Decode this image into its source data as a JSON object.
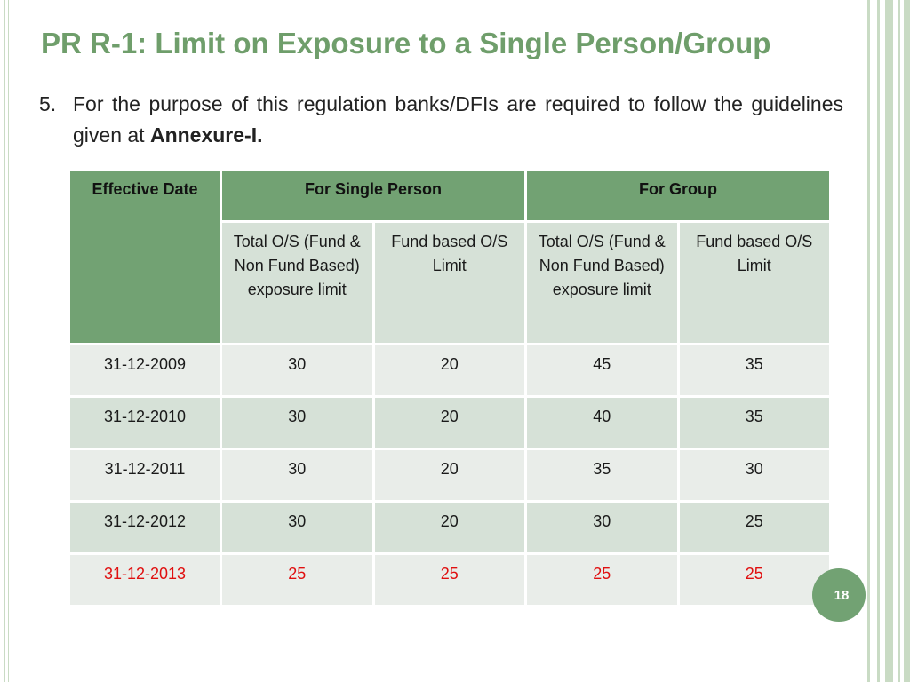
{
  "slide": {
    "title": "PR R-1: Limit on Exposure to a Single Person/Group",
    "point_number": "5.",
    "point_text_lead": "For the purpose of this regulation banks/DFIs are required to follow the guidelines given at ",
    "point_text_bold": "Annexure-I.",
    "page_number": "18"
  },
  "table": {
    "headers": {
      "effective_date": "Effective Date",
      "single_person": "For Single Person",
      "group": "For Group"
    },
    "subheaders": [
      "Total O/S (Fund & Non Fund Based) exposure limit",
      "Fund based O/S Limit",
      "Total O/S (Fund & Non Fund Based) exposure limit",
      "Fund based O/S Limit"
    ],
    "rows": [
      {
        "date": "31-12-2009",
        "values": [
          "30",
          "20",
          "45",
          "35"
        ]
      },
      {
        "date": "31-12-2010",
        "values": [
          "30",
          "20",
          "40",
          "35"
        ]
      },
      {
        "date": "31-12-2011",
        "values": [
          "30",
          "20",
          "35",
          "30"
        ]
      },
      {
        "date": "31-12-2012",
        "values": [
          "30",
          "20",
          "30",
          "25"
        ]
      },
      {
        "date": "31-12-2013",
        "values": [
          "25",
          "25",
          "25",
          "25"
        ]
      }
    ],
    "highlight_color": "#e01010"
  },
  "theme": {
    "accent": "#72a273",
    "title_color": "#6f9e6b"
  }
}
